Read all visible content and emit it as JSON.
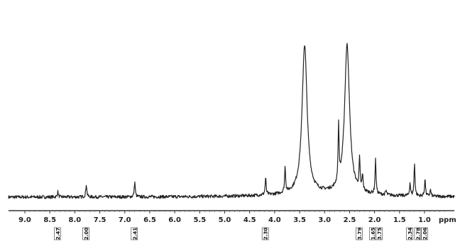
{
  "chart_data": {
    "type": "line",
    "title": "",
    "xlabel": "ppm",
    "ylabel": "",
    "x_reversed": true,
    "xlim": [
      9.0,
      0.5
    ],
    "x_ticks": [
      "9.0",
      "8.5",
      "8.0",
      "7.5",
      "7.0",
      "6.5",
      "6.0",
      "5.5",
      "5.0",
      "4.5",
      "4.0",
      "3.5",
      "3.0",
      "2.5",
      "2.0",
      "1.5",
      "1.0"
    ],
    "series": [
      {
        "peaks": [
          {
            "ppm": 8.34,
            "height": 0.05
          },
          {
            "ppm": 7.77,
            "height": 0.12
          },
          {
            "ppm": 6.8,
            "height": 0.14
          },
          {
            "ppm": 4.18,
            "height": 0.16
          },
          {
            "ppm": 3.79,
            "height": 0.24
          },
          {
            "ppm": 3.4,
            "height": 1.4
          },
          {
            "ppm": 2.72,
            "height": 0.52
          },
          {
            "ppm": 2.55,
            "height": 1.4
          },
          {
            "ppm": 2.3,
            "height": 0.28
          },
          {
            "ppm": 2.24,
            "height": 0.14
          },
          {
            "ppm": 1.98,
            "height": 0.32
          },
          {
            "ppm": 1.77,
            "height": 0.04
          },
          {
            "ppm": 1.29,
            "height": 0.12
          },
          {
            "ppm": 1.2,
            "height": 0.3
          },
          {
            "ppm": 0.99,
            "height": 0.16
          },
          {
            "ppm": 0.88,
            "height": 0.06
          }
        ]
      }
    ],
    "integrals": [
      {
        "ppm": 8.34,
        "label": "2.47"
      },
      {
        "ppm": 7.77,
        "label": "2.00"
      },
      {
        "ppm": 6.8,
        "label": "2.41"
      },
      {
        "ppm": 4.18,
        "label": "2.30"
      },
      {
        "ppm": 2.3,
        "label": "3.79"
      },
      {
        "ppm": 2.03,
        "label": "1.65"
      },
      {
        "ppm": 1.9,
        "label": "3.75"
      },
      {
        "ppm": 1.29,
        "label": "2.34"
      },
      {
        "ppm": 1.13,
        "label": "2.78"
      },
      {
        "ppm": 0.99,
        "label": "2.06"
      }
    ],
    "grid": false,
    "legend": "none"
  }
}
